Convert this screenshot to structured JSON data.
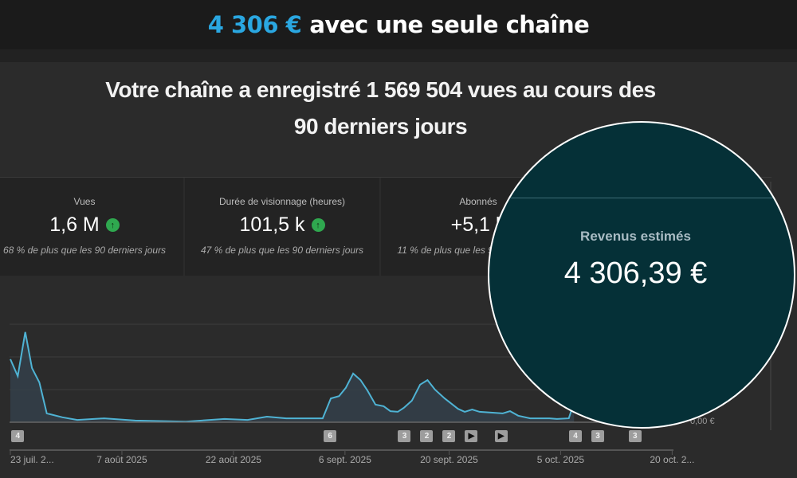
{
  "banner": {
    "amount": "4 306 €",
    "text": "avec une seule chaîne"
  },
  "headline": {
    "line1": "Votre chaîne a enregistré 1 569 504 vues au cours des",
    "line2": "90 derniers jours"
  },
  "cards": [
    {
      "label": "Vues",
      "value": "1,6 M",
      "trend": "up",
      "comparison": "68 % de plus que les 90 derniers jours"
    },
    {
      "label": "Durée de visionnage (heures)",
      "value": "101,5 k",
      "trend": "up",
      "comparison": "47 % de plus que les 90 derniers jours"
    },
    {
      "label": "Abonnés",
      "value": "+5,1 k",
      "comparison": "11 % de plus que les 90 derniers jours"
    }
  ],
  "revenue": {
    "label": "Revenus estimés",
    "value": "4 306,39 €"
  },
  "colors": {
    "accent": "#2aa7e1",
    "line": "#4fb3d4",
    "up": "#2fa84f",
    "circle": "#053037"
  },
  "chart_data": {
    "type": "area",
    "x_unit": "days since 23 juil. 2025",
    "y_unit": "relative (gridline steps)",
    "ylim": [
      0,
      3
    ],
    "y_tick_labels": [
      "0,00 €"
    ],
    "x_ticks": [
      {
        "day": 0,
        "label": "23 juil. 2..."
      },
      {
        "day": 15,
        "label": "7 août 2025"
      },
      {
        "day": 30,
        "label": "22 août 2025"
      },
      {
        "day": 45,
        "label": "6 sept. 2025"
      },
      {
        "day": 59,
        "label": "20 sept. 2025"
      },
      {
        "day": 74,
        "label": "5 oct. 2025"
      },
      {
        "day": 89,
        "label": "20 oct. 2..."
      }
    ],
    "points": [
      [
        0,
        1.93
      ],
      [
        1,
        1.41
      ],
      [
        2,
        2.76
      ],
      [
        2.9,
        1.66
      ],
      [
        3.9,
        1.22
      ],
      [
        4.9,
        0.27
      ],
      [
        7,
        0.15
      ],
      [
        9,
        0.07
      ],
      [
        12.6,
        0.12
      ],
      [
        16.8,
        0.05
      ],
      [
        23.6,
        0.02
      ],
      [
        28.8,
        0.1
      ],
      [
        31.9,
        0.07
      ],
      [
        34.5,
        0.17
      ],
      [
        37.1,
        0.12
      ],
      [
        42,
        0.12
      ],
      [
        43.1,
        0.73
      ],
      [
        44.2,
        0.8
      ],
      [
        45.1,
        1.05
      ],
      [
        46.1,
        1.49
      ],
      [
        47.1,
        1.29
      ],
      [
        48,
        0.98
      ],
      [
        49.1,
        0.54
      ],
      [
        50.2,
        0.49
      ],
      [
        51.1,
        0.34
      ],
      [
        52.1,
        0.32
      ],
      [
        52.9,
        0.44
      ],
      [
        54,
        0.66
      ],
      [
        55.1,
        1.15
      ],
      [
        56.1,
        1.29
      ],
      [
        57.1,
        1
      ],
      [
        58.4,
        0.73
      ],
      [
        60.2,
        0.41
      ],
      [
        61.1,
        0.32
      ],
      [
        62.1,
        0.39
      ],
      [
        63.1,
        0.32
      ],
      [
        66.2,
        0.27
      ],
      [
        67.2,
        0.34
      ],
      [
        68.3,
        0.2
      ],
      [
        69.9,
        0.12
      ],
      [
        72.5,
        0.12
      ],
      [
        73.5,
        0.1
      ],
      [
        75.1,
        0.12
      ],
      [
        75.8,
        0.61
      ]
    ],
    "markers": [
      {
        "day": 1,
        "label": "4"
      },
      {
        "day": 43,
        "label": "6"
      },
      {
        "day": 53,
        "label": "3"
      },
      {
        "day": 56,
        "label": "2"
      },
      {
        "day": 59,
        "label": "2"
      },
      {
        "day": 62,
        "label": "▶"
      },
      {
        "day": 66,
        "label": "▶"
      },
      {
        "day": 76,
        "label": "4"
      },
      {
        "day": 79,
        "label": "3"
      },
      {
        "day": 84,
        "label": "3"
      }
    ]
  }
}
